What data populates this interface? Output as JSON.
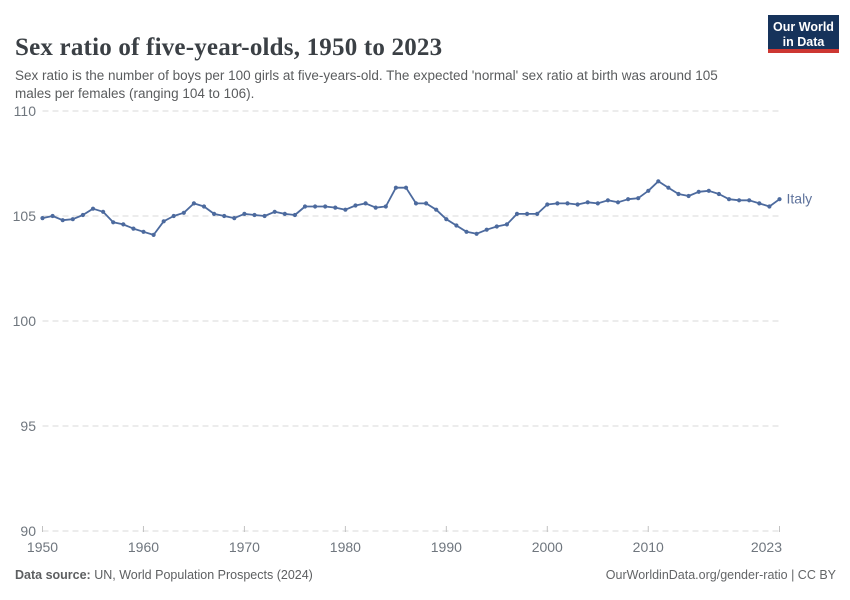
{
  "header": {
    "title": "Sex ratio of five-year-olds, 1950 to 2023",
    "subtitle": "Sex ratio is the number of boys per 100 girls at five-years-old. The expected 'normal' sex ratio at birth was around 105 males per females (ranging 104 to 106).",
    "logo": {
      "line1": "Our World",
      "line2": "in Data",
      "bg_color": "#16335b",
      "accent_color": "#cd3732"
    }
  },
  "footer": {
    "source_label": "Data source:",
    "source_text": "UN, World Population Prospects (2024)",
    "right_text": "OurWorldinData.org/gender-ratio | CC BY"
  },
  "chart_data": {
    "type": "line",
    "title": "Sex ratio of five-year-olds, 1950 to 2023",
    "xlabel": "",
    "ylabel": "",
    "xlim": [
      1950,
      2023
    ],
    "ylim": [
      90,
      110
    ],
    "yticks": [
      90,
      95,
      100,
      105,
      110
    ],
    "xticks": [
      1950,
      1960,
      1970,
      1980,
      1990,
      2000,
      2010,
      2023
    ],
    "grid": true,
    "legend_position": "end-of-line",
    "series": [
      {
        "name": "Italy",
        "color": "#4c6a9e",
        "label_color": "#5f739c",
        "x": [
          1950,
          1951,
          1952,
          1953,
          1954,
          1955,
          1956,
          1957,
          1958,
          1959,
          1960,
          1961,
          1962,
          1963,
          1964,
          1965,
          1966,
          1967,
          1968,
          1969,
          1970,
          1971,
          1972,
          1973,
          1974,
          1975,
          1976,
          1977,
          1978,
          1979,
          1980,
          1981,
          1982,
          1983,
          1984,
          1985,
          1986,
          1987,
          1988,
          1989,
          1990,
          1991,
          1992,
          1993,
          1994,
          1995,
          1996,
          1997,
          1998,
          1999,
          2000,
          2001,
          2002,
          2003,
          2004,
          2005,
          2006,
          2007,
          2008,
          2009,
          2010,
          2011,
          2012,
          2013,
          2014,
          2015,
          2016,
          2017,
          2018,
          2019,
          2020,
          2021,
          2022,
          2023
        ],
        "values": [
          104.9,
          105.0,
          104.8,
          104.85,
          105.05,
          105.35,
          105.2,
          104.7,
          104.6,
          104.4,
          104.25,
          104.1,
          104.75,
          105.0,
          105.15,
          105.6,
          105.45,
          105.1,
          105.0,
          104.9,
          105.1,
          105.05,
          105.0,
          105.2,
          105.1,
          105.05,
          105.45,
          105.45,
          105.45,
          105.4,
          105.3,
          105.5,
          105.6,
          105.4,
          105.45,
          106.35,
          106.35,
          105.6,
          105.6,
          105.3,
          104.85,
          104.55,
          104.25,
          104.15,
          104.35,
          104.5,
          104.6,
          105.1,
          105.1,
          105.1,
          105.55,
          105.6,
          105.6,
          105.55,
          105.65,
          105.6,
          105.75,
          105.65,
          105.8,
          105.85,
          106.2,
          106.65,
          106.35,
          106.05,
          105.95,
          106.15,
          106.2,
          106.05,
          105.8,
          105.75,
          105.75,
          105.6,
          105.45,
          105.8
        ]
      }
    ]
  }
}
